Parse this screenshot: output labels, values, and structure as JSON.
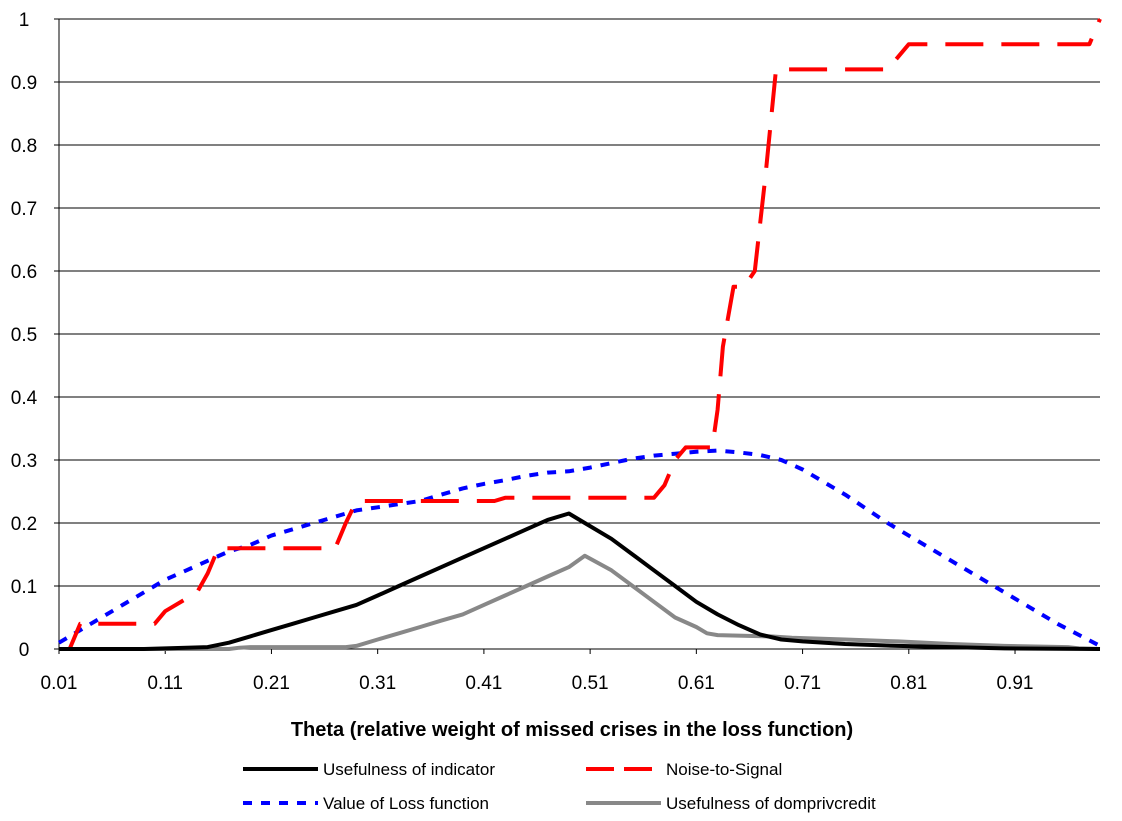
{
  "chart_data": {
    "type": "line",
    "title": "",
    "xlabel": "Theta (relative weight of missed crises in the loss function)",
    "ylabel": "",
    "xlim": [
      0.01,
      0.99
    ],
    "ylim": [
      0,
      1
    ],
    "x_tick_labels": [
      "0.01",
      "0.11",
      "0.21",
      "0.31",
      "0.41",
      "0.51",
      "0.61",
      "0.71",
      "0.81",
      "0.91"
    ],
    "y_tick_labels": [
      "0",
      "0.1",
      "0.2",
      "0.3",
      "0.4",
      "0.5",
      "0.6",
      "0.7",
      "0.8",
      "0.9",
      "1"
    ],
    "grid": "horizontal",
    "legend_position": "bottom",
    "series": [
      {
        "name": "Usefulness of indicator",
        "color": "#000000",
        "style": "solid",
        "x": [
          0.01,
          0.09,
          0.15,
          0.17,
          0.19,
          0.21,
          0.23,
          0.25,
          0.27,
          0.29,
          0.31,
          0.33,
          0.35,
          0.37,
          0.39,
          0.41,
          0.43,
          0.45,
          0.47,
          0.49,
          0.505,
          0.53,
          0.55,
          0.57,
          0.59,
          0.61,
          0.63,
          0.65,
          0.67,
          0.69,
          0.71,
          0.75,
          0.8,
          0.85,
          0.9,
          0.99
        ],
        "values": [
          0,
          0,
          0.003,
          0.01,
          0.02,
          0.03,
          0.04,
          0.05,
          0.06,
          0.07,
          0.085,
          0.1,
          0.115,
          0.13,
          0.145,
          0.16,
          0.175,
          0.19,
          0.205,
          0.215,
          0.2,
          0.175,
          0.15,
          0.125,
          0.1,
          0.075,
          0.055,
          0.038,
          0.023,
          0.015,
          0.012,
          0.008,
          0.005,
          0.003,
          0.001,
          0
        ]
      },
      {
        "name": "Noise-to-Signal",
        "color": "#ff0000",
        "style": "dashed",
        "x": [
          0.01,
          0.02,
          0.03,
          0.04,
          0.1,
          0.11,
          0.13,
          0.14,
          0.15,
          0.16,
          0.27,
          0.28,
          0.29,
          0.42,
          0.43,
          0.57,
          0.58,
          0.59,
          0.6,
          0.625,
          0.63,
          0.635,
          0.645,
          0.655,
          0.665,
          0.675,
          0.685,
          0.79,
          0.81,
          0.98,
          0.99
        ],
        "values": [
          0,
          0,
          0.04,
          0.04,
          0.04,
          0.06,
          0.08,
          0.09,
          0.12,
          0.16,
          0.16,
          0.2,
          0.235,
          0.235,
          0.24,
          0.24,
          0.26,
          0.3,
          0.32,
          0.32,
          0.38,
          0.48,
          0.575,
          0.575,
          0.6,
          0.75,
          0.92,
          0.92,
          0.96,
          0.96,
          1.0
        ]
      },
      {
        "name": "Value of Loss function",
        "color": "#0000ff",
        "style": "dotted",
        "x": [
          0.01,
          0.03,
          0.05,
          0.07,
          0.09,
          0.11,
          0.13,
          0.15,
          0.17,
          0.19,
          0.21,
          0.23,
          0.25,
          0.27,
          0.29,
          0.31,
          0.33,
          0.35,
          0.37,
          0.39,
          0.41,
          0.43,
          0.45,
          0.47,
          0.49,
          0.51,
          0.53,
          0.55,
          0.57,
          0.59,
          0.61,
          0.63,
          0.65,
          0.67,
          0.69,
          0.71,
          0.75,
          0.79,
          0.83,
          0.87,
          0.91,
          0.95,
          0.99
        ],
        "values": [
          0.01,
          0.03,
          0.05,
          0.07,
          0.09,
          0.11,
          0.125,
          0.14,
          0.155,
          0.165,
          0.18,
          0.19,
          0.2,
          0.21,
          0.22,
          0.225,
          0.23,
          0.235,
          0.245,
          0.255,
          0.262,
          0.268,
          0.275,
          0.28,
          0.282,
          0.288,
          0.295,
          0.302,
          0.307,
          0.31,
          0.313,
          0.315,
          0.312,
          0.308,
          0.3,
          0.285,
          0.245,
          0.2,
          0.16,
          0.12,
          0.08,
          0.04,
          0.005
        ]
      },
      {
        "name": "Usefulness of domprivcredit",
        "color": "#888888",
        "style": "solid",
        "x": [
          0.01,
          0.17,
          0.18,
          0.19,
          0.28,
          0.29,
          0.31,
          0.33,
          0.35,
          0.37,
          0.39,
          0.41,
          0.43,
          0.45,
          0.47,
          0.49,
          0.505,
          0.53,
          0.55,
          0.57,
          0.59,
          0.61,
          0.62,
          0.63,
          0.68,
          0.7,
          0.75,
          0.8,
          0.85,
          0.9,
          0.96,
          0.97,
          0.99
        ],
        "values": [
          0,
          0,
          0.002,
          0.003,
          0.003,
          0.005,
          0.015,
          0.025,
          0.035,
          0.045,
          0.055,
          0.07,
          0.085,
          0.1,
          0.115,
          0.13,
          0.148,
          0.125,
          0.1,
          0.075,
          0.05,
          0.035,
          0.025,
          0.022,
          0.02,
          0.018,
          0.015,
          0.012,
          0.008,
          0.005,
          0.003,
          0.001,
          0
        ]
      }
    ]
  }
}
